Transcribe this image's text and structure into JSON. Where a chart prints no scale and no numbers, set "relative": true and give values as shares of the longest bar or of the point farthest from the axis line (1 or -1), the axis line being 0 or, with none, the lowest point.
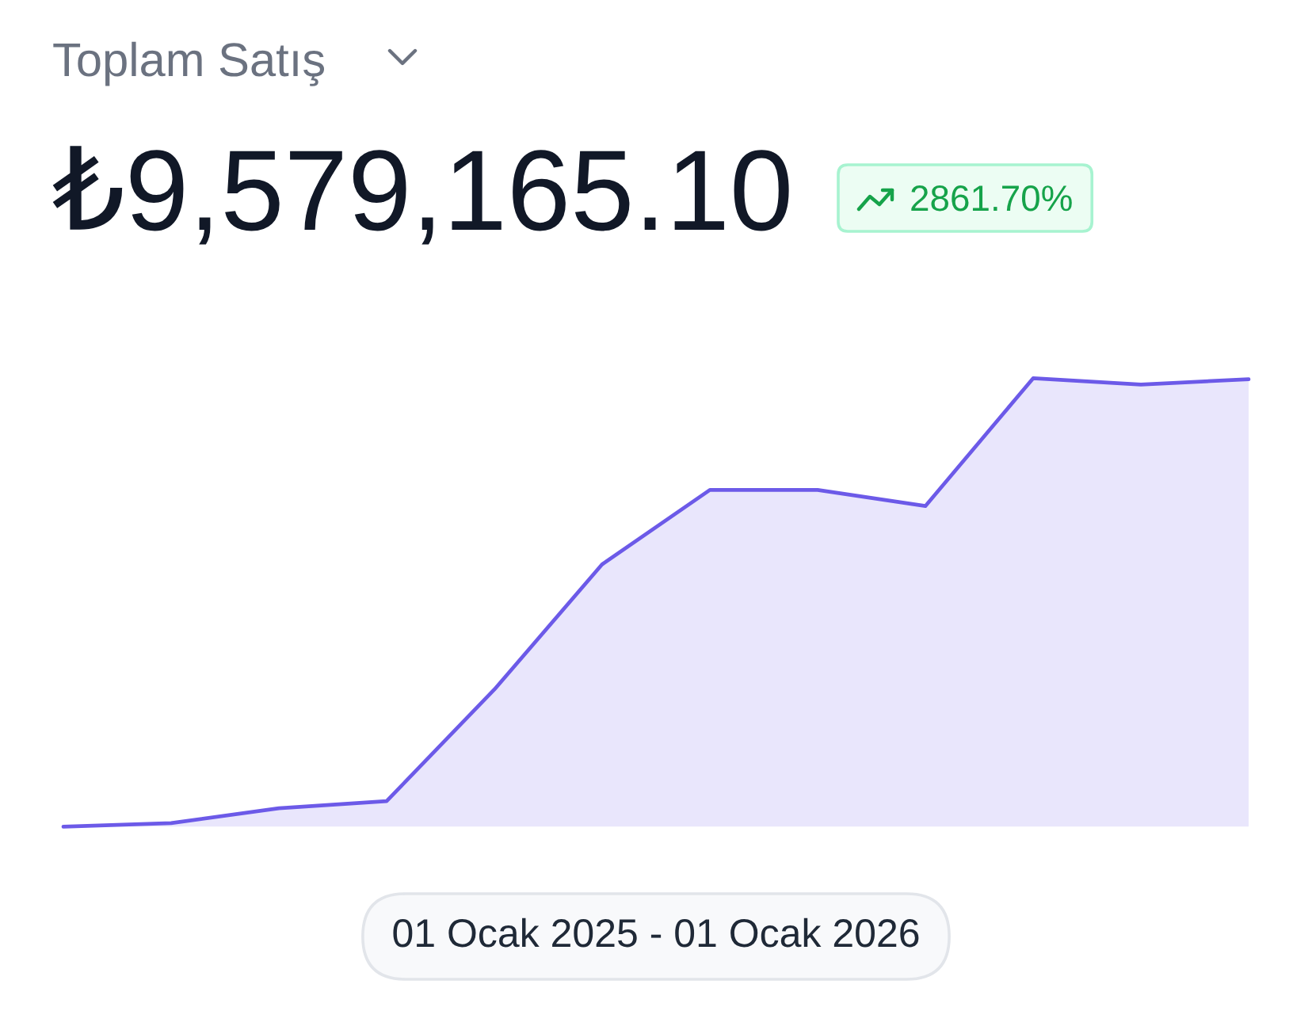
{
  "chart_data": {
    "type": "area",
    "title": "Toplam Satış",
    "subtitle": "₺9,579,165.10",
    "annotations": [
      "2861.70%"
    ],
    "xlabel": "01 Ocak 2025 - 01 Ocak 2026",
    "categories": [
      null,
      null,
      null,
      null,
      null,
      null,
      null,
      null,
      null,
      null,
      null,
      null
    ],
    "relative": true,
    "series": [
      {
        "color": "#6c5ae8",
        "values": [
          0,
          0.008,
          0.041,
          0.057,
          0.306,
          0.585,
          0.751,
          0.751,
          0.715,
          1,
          0.986,
          0.998
        ]
      }
    ]
  }
}
